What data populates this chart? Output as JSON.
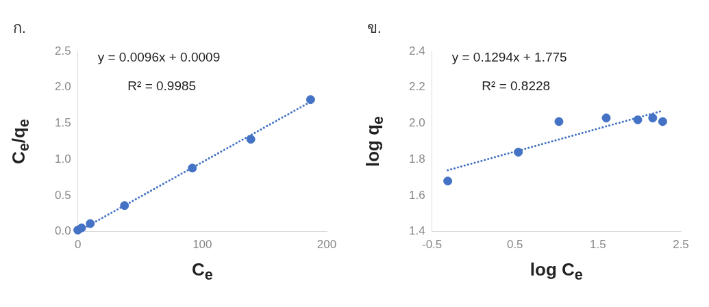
{
  "chart_data": [
    {
      "type": "scatter",
      "annotations": [
        "ก.",
        "y = 0.0096x + 0.0009",
        "R² = 0.9985"
      ],
      "xlabel": "C$_{e}$",
      "ylabel": "C$_{e}$/q$_{e}$",
      "x": [
        0,
        3,
        10,
        37.5,
        92,
        139,
        187
      ],
      "series": [
        {
          "color": "#4472c4",
          "marker": "circle",
          "values": [
            0.02,
            0.05,
            0.11,
            0.36,
            0.88,
            1.28,
            1.83
          ]
        },
        {
          "type": "line",
          "color": "#4472c4",
          "line_style": "dotted",
          "marker": "none",
          "x": [
            0,
            187
          ],
          "values": [
            0.0,
            1.8
          ]
        }
      ],
      "xlim": [
        0,
        200
      ],
      "xticks": [
        0,
        100,
        200
      ],
      "ylim": [
        0,
        2.5
      ],
      "yticks": [
        {
          "value": 0,
          "label": "0.0"
        },
        0.5,
        {
          "value": 1,
          "label": "1.0"
        },
        1.5,
        {
          "value": 2,
          "label": "2.0"
        },
        2.5
      ],
      "grid": false,
      "legend": false
    },
    {
      "type": "scatter",
      "annotations": [
        "ข.",
        "y = 0.1294x + 1.775",
        "R² = 0.8228"
      ],
      "xlabel": "log C$_{e}$",
      "ylabel": "log q$_{e}$",
      "x": [
        -0.31,
        0.54,
        1.03,
        1.6,
        1.98,
        2.16,
        2.28
      ],
      "series": [
        {
          "color": "#4472c4",
          "marker": "circle",
          "values": [
            1.68,
            1.84,
            2.01,
            2.03,
            2.02,
            2.03,
            2.01
          ]
        },
        {
          "type": "line",
          "color": "#4472c4",
          "line_style": "dotted",
          "marker": "none",
          "x": [
            -0.31,
            2.28
          ],
          "values": [
            1.74,
            2.07
          ]
        }
      ],
      "xlim": [
        -0.5,
        2.5
      ],
      "xticks": [
        -0.5,
        0.5,
        1.5,
        2.5
      ],
      "ylim": [
        1.4,
        2.4
      ],
      "yticks": [
        1.4,
        1.6,
        1.8,
        {
          "value": 2,
          "label": "2.0"
        },
        2.2,
        2.4
      ],
      "grid": false,
      "legend": false
    }
  ]
}
